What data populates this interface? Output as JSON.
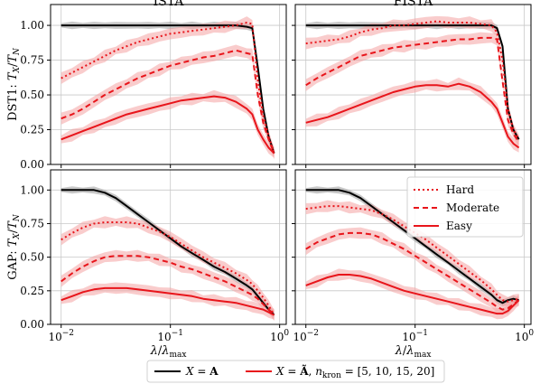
{
  "chart_data": {
    "type": "line",
    "x_scale": "log",
    "xlim": [
      0.008,
      1.15
    ],
    "ylim": [
      0,
      1.15
    ],
    "xlabel": "λ/λmax",
    "x_ticks": [
      {
        "value": 0.01,
        "base": "10",
        "exp": "−2"
      },
      {
        "value": 0.1,
        "base": "10",
        "exp": "−1"
      },
      {
        "value": 1,
        "base": "10",
        "exp": "0"
      }
    ],
    "y_ticks": [
      "0.00",
      "0.25",
      "0.50",
      "0.75",
      "1.00"
    ],
    "y_tick_values": [
      0,
      0.25,
      0.5,
      0.75,
      1.0
    ],
    "grid": true,
    "colors": {
      "baseline": "#000000",
      "kron": "#e8151b",
      "band_kron": "#f4a3a3",
      "band_base": "#9a9a9a"
    },
    "x": [
      0.01,
      0.0126,
      0.0158,
      0.02,
      0.0251,
      0.0316,
      0.0398,
      0.0501,
      0.0631,
      0.0794,
      0.1,
      0.126,
      0.158,
      0.2,
      0.251,
      0.316,
      0.398,
      0.501,
      0.562,
      0.631,
      0.708,
      0.794,
      0.891
    ],
    "legend": {
      "inner": {
        "hard": "Hard",
        "moderate": "Moderate",
        "easy": "Easy"
      },
      "bottom": {
        "base": "X = A",
        "kron": "X = Ã, nkron = [5, 10, 15, 20]"
      }
    },
    "panels": [
      {
        "id": "dst1-ista",
        "title": "ISTA",
        "ylabel_prefix": "DST1:",
        "ylabel": "TX/TN",
        "series": [
          {
            "style": "solid-black",
            "values": [
              1.0,
              1.0,
              1.0,
              1.0,
              1.0,
              1.0,
              1.0,
              1.0,
              1.0,
              1.0,
              1.0,
              1.0,
              1.0,
              1.0,
              1.0,
              1.0,
              1.0,
              0.99,
              0.98,
              0.7,
              0.4,
              0.2,
              0.08
            ]
          },
          {
            "style": "dotted-red",
            "values": [
              0.62,
              0.66,
              0.7,
              0.74,
              0.78,
              0.82,
              0.85,
              0.88,
              0.9,
              0.92,
              0.94,
              0.95,
              0.96,
              0.97,
              0.98,
              0.99,
              1.0,
              1.02,
              1.01,
              0.6,
              0.35,
              0.2,
              0.08
            ]
          },
          {
            "style": "dashed-red",
            "values": [
              0.33,
              0.36,
              0.4,
              0.45,
              0.5,
              0.54,
              0.58,
              0.62,
              0.65,
              0.68,
              0.71,
              0.73,
              0.75,
              0.77,
              0.78,
              0.8,
              0.82,
              0.8,
              0.79,
              0.5,
              0.3,
              0.18,
              0.08
            ]
          },
          {
            "style": "solid-red",
            "values": [
              0.18,
              0.21,
              0.24,
              0.27,
              0.3,
              0.33,
              0.36,
              0.38,
              0.4,
              0.42,
              0.44,
              0.46,
              0.47,
              0.48,
              0.49,
              0.48,
              0.45,
              0.4,
              0.36,
              0.25,
              0.18,
              0.12,
              0.08
            ]
          }
        ]
      },
      {
        "id": "dst1-fista",
        "title": "FISTA",
        "series": [
          {
            "style": "solid-black",
            "values": [
              1.0,
              1.0,
              1.0,
              1.0,
              1.0,
              1.0,
              1.0,
              1.0,
              1.0,
              1.0,
              1.0,
              1.0,
              1.0,
              1.0,
              1.0,
              1.0,
              1.0,
              1.0,
              0.98,
              0.85,
              0.4,
              0.25,
              0.18
            ]
          },
          {
            "style": "dotted-red",
            "values": [
              0.87,
              0.88,
              0.89,
              0.9,
              0.92,
              0.95,
              0.97,
              0.98,
              1.0,
              1.0,
              1.01,
              1.02,
              1.03,
              1.02,
              1.02,
              1.02,
              1.01,
              1.0,
              0.95,
              0.75,
              0.4,
              0.25,
              0.18
            ]
          },
          {
            "style": "dashed-red",
            "values": [
              0.57,
              0.62,
              0.66,
              0.7,
              0.74,
              0.78,
              0.8,
              0.82,
              0.84,
              0.85,
              0.86,
              0.87,
              0.88,
              0.89,
              0.9,
              0.9,
              0.91,
              0.91,
              0.9,
              0.6,
              0.32,
              0.22,
              0.16
            ]
          },
          {
            "style": "solid-red",
            "values": [
              0.3,
              0.32,
              0.34,
              0.37,
              0.4,
              0.43,
              0.46,
              0.49,
              0.52,
              0.54,
              0.56,
              0.57,
              0.57,
              0.56,
              0.58,
              0.56,
              0.52,
              0.45,
              0.4,
              0.3,
              0.2,
              0.15,
              0.12
            ]
          }
        ]
      },
      {
        "id": "gap-ista",
        "ylabel_prefix": "GAP:",
        "ylabel": "TX/TN",
        "series": [
          {
            "style": "solid-black",
            "values": [
              1.0,
              1.0,
              1.0,
              1.0,
              0.98,
              0.94,
              0.88,
              0.82,
              0.76,
              0.7,
              0.64,
              0.58,
              0.53,
              0.48,
              0.43,
              0.39,
              0.34,
              0.29,
              0.26,
              0.21,
              0.16,
              0.11,
              0.07
            ]
          },
          {
            "style": "dotted-red",
            "values": [
              0.63,
              0.68,
              0.72,
              0.75,
              0.76,
              0.76,
              0.76,
              0.75,
              0.72,
              0.69,
              0.65,
              0.6,
              0.55,
              0.5,
              0.46,
              0.42,
              0.38,
              0.33,
              0.3,
              0.25,
              0.2,
              0.14,
              0.07
            ]
          },
          {
            "style": "dashed-red",
            "values": [
              0.32,
              0.38,
              0.43,
              0.47,
              0.5,
              0.51,
              0.51,
              0.51,
              0.5,
              0.48,
              0.46,
              0.43,
              0.41,
              0.38,
              0.35,
              0.32,
              0.28,
              0.24,
              0.22,
              0.19,
              0.15,
              0.11,
              0.07
            ]
          },
          {
            "style": "solid-red",
            "values": [
              0.18,
              0.21,
              0.24,
              0.26,
              0.27,
              0.27,
              0.27,
              0.26,
              0.25,
              0.24,
              0.23,
              0.22,
              0.21,
              0.19,
              0.18,
              0.17,
              0.16,
              0.14,
              0.13,
              0.12,
              0.11,
              0.09,
              0.07
            ]
          }
        ]
      },
      {
        "id": "gap-fista",
        "series": [
          {
            "style": "solid-black",
            "values": [
              1.0,
              1.0,
              1.0,
              1.0,
              0.98,
              0.94,
              0.88,
              0.82,
              0.76,
              0.7,
              0.64,
              0.58,
              0.52,
              0.46,
              0.4,
              0.34,
              0.28,
              0.22,
              0.18,
              0.16,
              0.18,
              0.19,
              0.18
            ]
          },
          {
            "style": "dotted-red",
            "values": [
              0.86,
              0.87,
              0.88,
              0.88,
              0.87,
              0.86,
              0.85,
              0.82,
              0.78,
              0.73,
              0.68,
              0.63,
              0.57,
              0.51,
              0.45,
              0.39,
              0.33,
              0.26,
              0.22,
              0.18,
              0.17,
              0.18,
              0.19
            ]
          },
          {
            "style": "dashed-red",
            "values": [
              0.56,
              0.61,
              0.64,
              0.67,
              0.68,
              0.68,
              0.67,
              0.64,
              0.6,
              0.56,
              0.51,
              0.46,
              0.41,
              0.36,
              0.31,
              0.26,
              0.21,
              0.16,
              0.13,
              0.11,
              0.12,
              0.15,
              0.18
            ]
          },
          {
            "style": "solid-red",
            "values": [
              0.29,
              0.32,
              0.35,
              0.37,
              0.37,
              0.36,
              0.34,
              0.31,
              0.28,
              0.25,
              0.23,
              0.21,
              0.19,
              0.17,
              0.15,
              0.13,
              0.11,
              0.09,
              0.08,
              0.08,
              0.1,
              0.14,
              0.18
            ]
          }
        ]
      }
    ]
  }
}
